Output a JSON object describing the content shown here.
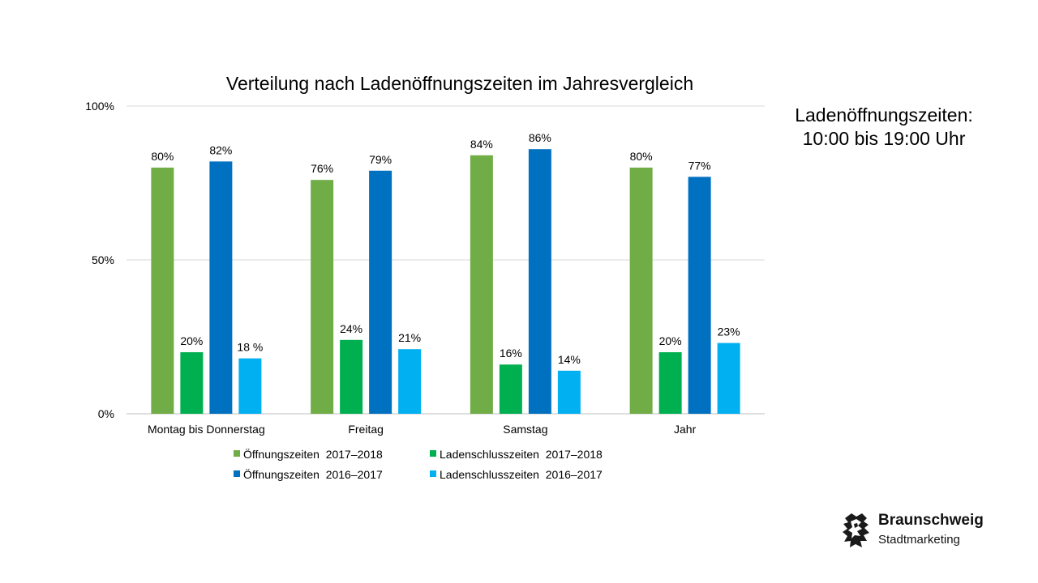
{
  "side_note": {
    "line1": "Ladenöffnungszeiten:",
    "line2": "10:00 bis 19:00 Uhr"
  },
  "logo": {
    "name": "Braunschweig",
    "subtitle": "Stadtmarketing",
    "icon": "braunschweig-lion-icon"
  },
  "chart_data": {
    "type": "bar",
    "title": "Verteilung nach Ladenöffnungszeiten im Jahresvergleich",
    "xlabel": "",
    "ylabel": "",
    "ylim": [
      0,
      100
    ],
    "yticks": [
      "0%",
      "50%",
      "100%"
    ],
    "grid": true,
    "legend_position": "bottom",
    "categories": [
      "Montag bis Donnerstag",
      "Freitag",
      "Samstag",
      "Jahr"
    ],
    "series": [
      {
        "name": "Öffnungszeiten  2017–2018",
        "color": "#70ad47",
        "values": [
          80,
          76,
          84,
          80
        ],
        "labels": [
          "80%",
          "76%",
          "84%",
          "80%"
        ]
      },
      {
        "name": "Ladenschlusszeiten  2017–2018",
        "color": "#00b050",
        "values": [
          20,
          24,
          16,
          20
        ],
        "labels": [
          "20%",
          "24%",
          "16%",
          "20%"
        ]
      },
      {
        "name": "Öffnungszeiten  2016–2017",
        "color": "#0070c0",
        "values": [
          82,
          79,
          86,
          77
        ],
        "labels": [
          "82%",
          "79%",
          "86%",
          "77%"
        ]
      },
      {
        "name": "Ladenschlusszeiten  2016–2017",
        "color": "#00b0f0",
        "values": [
          18,
          21,
          14,
          23
        ],
        "labels": [
          "18 %",
          "21%",
          "14%",
          "23%"
        ]
      }
    ]
  }
}
